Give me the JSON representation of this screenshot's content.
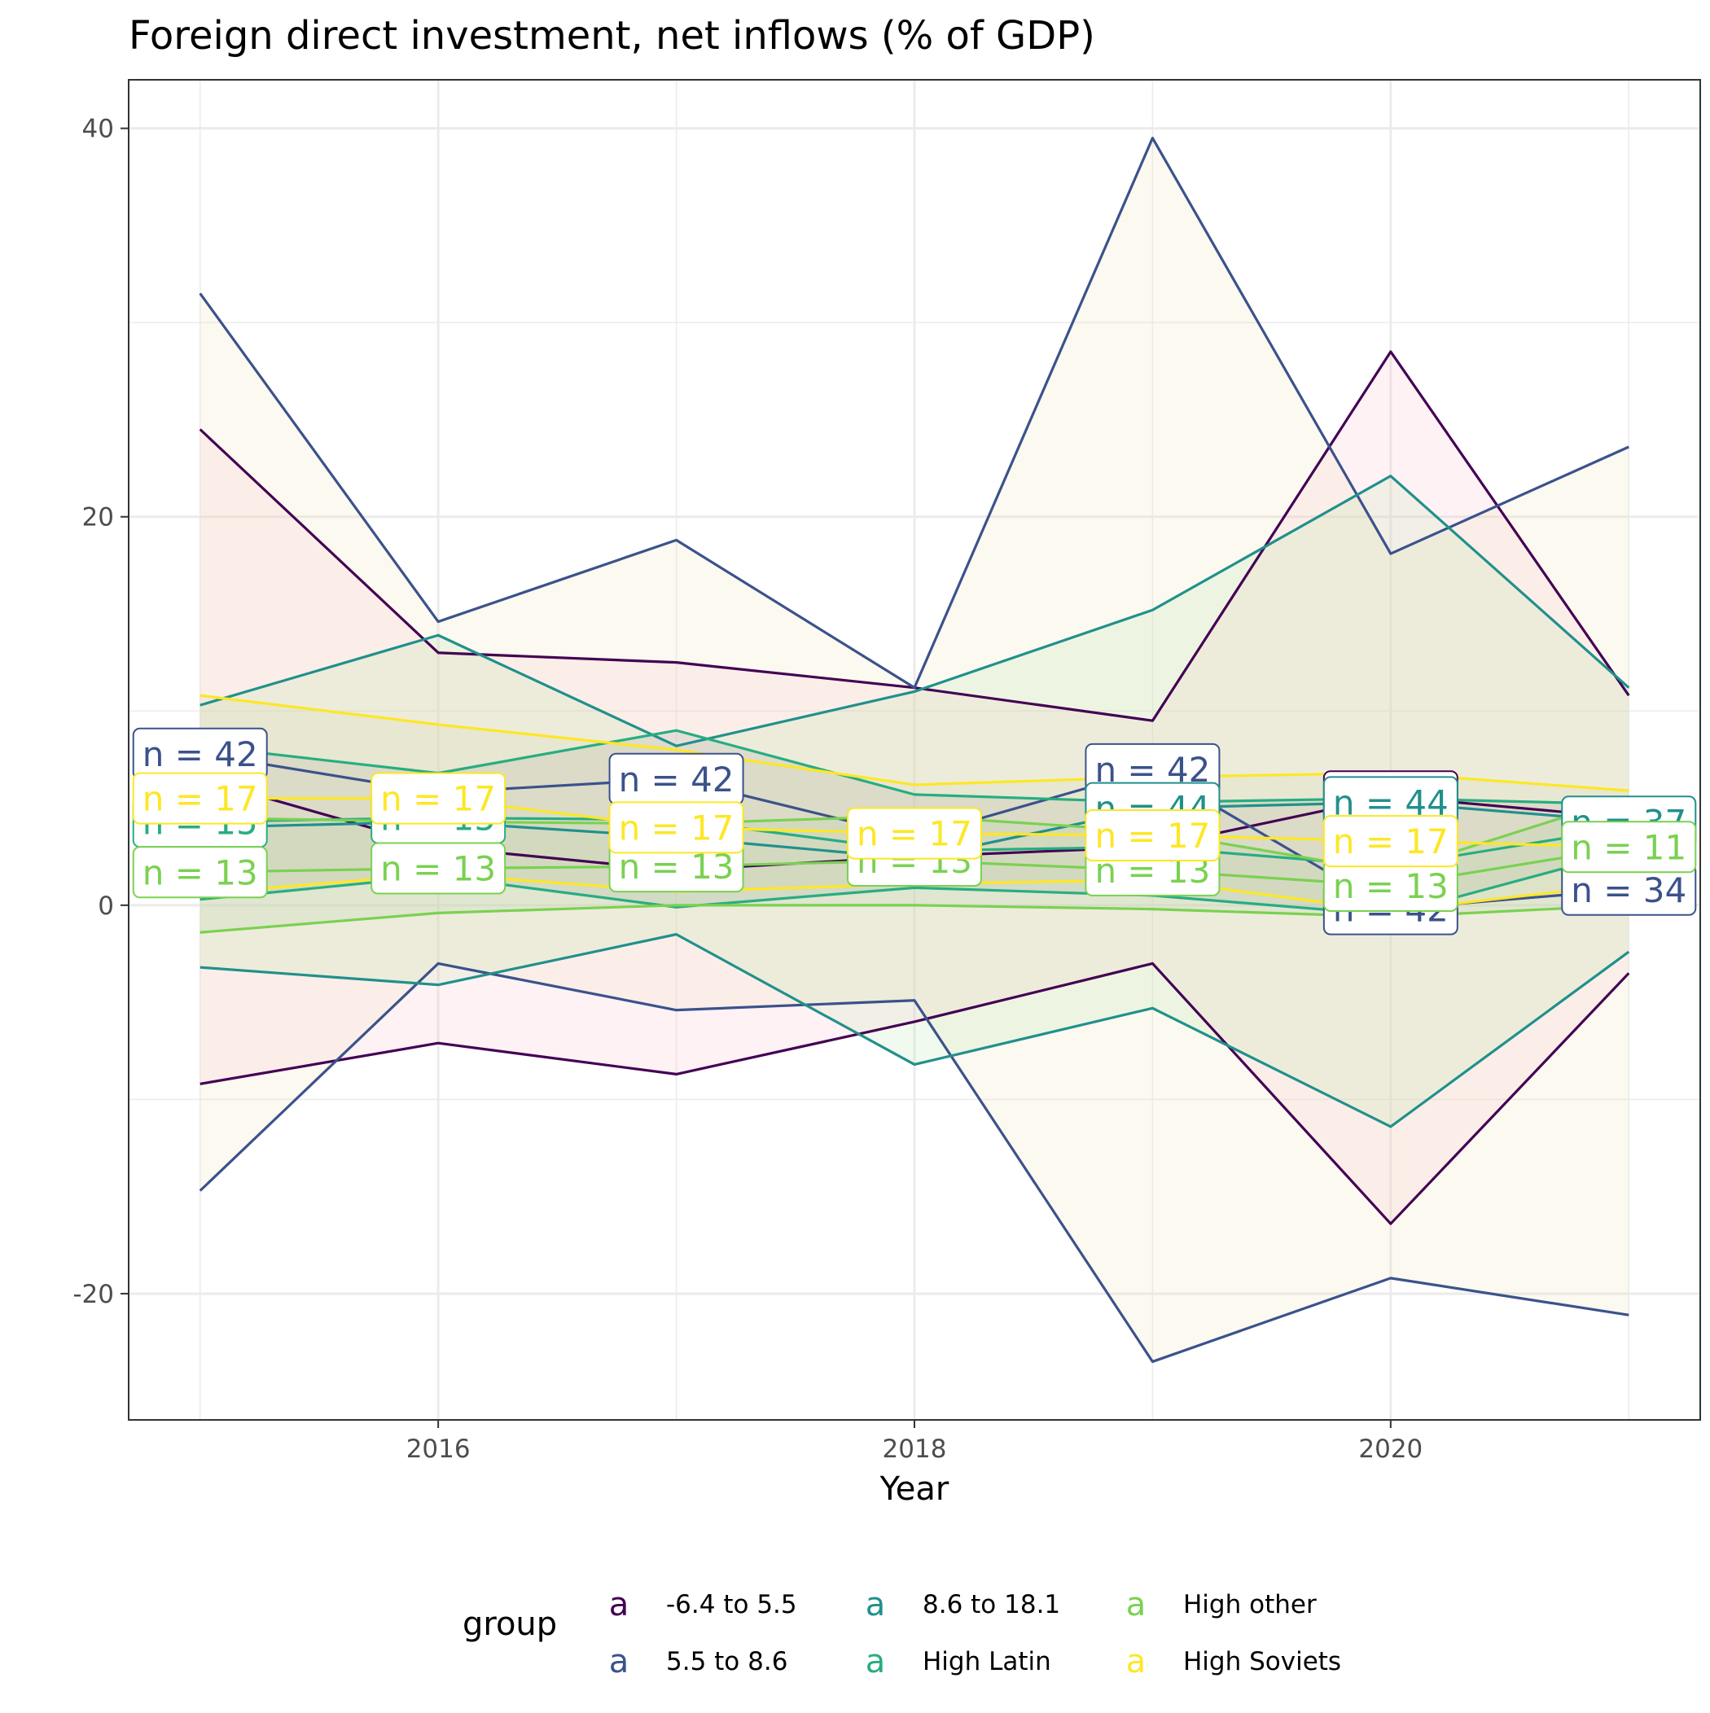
{
  "chart_data": {
    "type": "line",
    "title": "Foreign direct investment, net inflows (% of GDP)",
    "xlabel": "Year",
    "ylabel": "",
    "xlim": [
      2014.7,
      2021.3
    ],
    "ylim": [
      -26.5,
      42.5
    ],
    "x_ticks": [
      2016,
      2018,
      2020
    ],
    "y_ticks": [
      -20,
      0,
      20,
      40
    ],
    "grid": true,
    "legend": {
      "title": "group",
      "position": "bottom",
      "swatch_glyph": "a"
    },
    "x": [
      2015,
      2016,
      2017,
      2018,
      2019,
      2020,
      2021
    ],
    "series": [
      {
        "name": "-6.4 to 5.5",
        "color": "#440154",
        "fill": "#FFC0CB",
        "upper": [
          24.5,
          13.0,
          12.5,
          11.2,
          9.5,
          28.5,
          10.8
        ],
        "lower": [
          -9.2,
          -7.1,
          -8.7,
          -6.0,
          -3.0,
          -16.4,
          -3.5
        ],
        "median": [
          6.5,
          3.0,
          1.8,
          2.5,
          3.0,
          5.6,
          4.5
        ],
        "n": [
          null,
          null,
          null,
          null,
          null,
          "n = 36",
          null
        ]
      },
      {
        "name": "5.5 to 8.6",
        "color": "#3B528B",
        "fill": "#E9E1B5",
        "upper": [
          31.5,
          14.6,
          18.8,
          11.2,
          39.5,
          18.1,
          23.6
        ],
        "lower": [
          -14.7,
          -3.0,
          -5.4,
          -4.9,
          -23.5,
          -19.2,
          -21.1
        ],
        "median": [
          7.8,
          5.8,
          6.5,
          3.5,
          7.0,
          -0.2,
          0.8
        ],
        "n": [
          "n = 42",
          null,
          "n = 42",
          null,
          "n = 42",
          "n = 42",
          "n = 34"
        ]
      },
      {
        "name": "8.6 to 18.1",
        "color": "#21908C",
        "fill": "#B8E6A8",
        "upper": [
          10.3,
          13.9,
          8.2,
          11.0,
          15.2,
          22.1,
          11.2
        ],
        "lower": [
          -3.2,
          -4.1,
          -1.5,
          -8.2,
          -5.3,
          -11.4,
          -2.4
        ],
        "median": [
          4.0,
          4.3,
          3.5,
          2.4,
          5.0,
          5.3,
          4.3
        ],
        "n": [
          null,
          null,
          null,
          "n = 45",
          "n = 44",
          "n = 44",
          "n = 37"
        ]
      },
      {
        "name": "High Latin",
        "color": "#27AD81",
        "fill": "#A0A0A0",
        "upper": [
          8.2,
          6.8,
          9.0,
          5.7,
          5.3,
          5.5,
          5.2
        ],
        "lower": [
          0.3,
          1.5,
          -0.1,
          0.9,
          0.5,
          -0.5,
          2.8
        ],
        "median": [
          4.3,
          4.5,
          4.4,
          2.8,
          3.0,
          2.0,
          4.0
        ],
        "n": [
          "n = 15",
          "n = 15",
          null,
          null,
          null,
          null,
          null
        ]
      },
      {
        "name": "High other",
        "color": "#7AD151",
        "fill": "#B0D4A0",
        "upper": [
          4.5,
          4.3,
          4.2,
          4.6,
          3.8,
          1.7,
          5.6
        ],
        "lower": [
          -1.4,
          -0.4,
          0.0,
          0.0,
          -0.2,
          -0.6,
          0.0
        ],
        "median": [
          1.7,
          1.9,
          2.0,
          2.3,
          1.8,
          1.0,
          3.0
        ],
        "n": [
          "n = 13",
          "n = 13",
          "n = 13",
          "n = 13",
          "n = 13",
          "n = 13",
          "n = 11"
        ]
      },
      {
        "name": "High Soviets",
        "color": "#FDE725",
        "fill": "#D8D6A8",
        "upper": [
          10.8,
          9.3,
          8.0,
          6.2,
          6.6,
          6.8,
          5.9
        ],
        "lower": [
          0.6,
          1.6,
          0.7,
          1.1,
          1.3,
          -0.3,
          1.1
        ],
        "median": [
          5.5,
          5.5,
          4.0,
          3.7,
          3.6,
          3.3,
          3.0
        ],
        "n": [
          "n = 17",
          "n = 17",
          "n = 17",
          "n = 17",
          "n = 17",
          "n = 17",
          null
        ]
      }
    ]
  }
}
